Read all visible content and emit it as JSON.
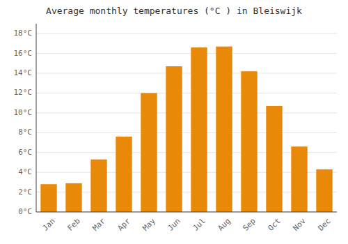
{
  "chart_data": {
    "type": "bar",
    "title": "Average monthly temperatures (°C ) in Bleiswijk",
    "categories": [
      "Jan",
      "Feb",
      "Mar",
      "Apr",
      "May",
      "Jun",
      "Jul",
      "Aug",
      "Sep",
      "Oct",
      "Nov",
      "Dec"
    ],
    "values": [
      2.8,
      2.9,
      5.3,
      7.6,
      12.0,
      14.7,
      16.6,
      16.7,
      14.2,
      10.7,
      6.6,
      4.3
    ],
    "color": "#E8890A",
    "ylim": [
      0,
      19.0
    ],
    "yticks": [
      {
        "value": 0,
        "label": "0°C"
      },
      {
        "value": 2,
        "label": "2°C"
      },
      {
        "value": 4,
        "label": "4°C"
      },
      {
        "value": 6,
        "label": "6°C"
      },
      {
        "value": 8,
        "label": "8°C"
      },
      {
        "value": 10,
        "label": "10°C"
      },
      {
        "value": 12,
        "label": "12°C"
      },
      {
        "value": 14,
        "label": "14°C"
      },
      {
        "value": 16,
        "label": "16°C"
      },
      {
        "value": 18,
        "label": "18°C"
      }
    ],
    "grid": true
  }
}
